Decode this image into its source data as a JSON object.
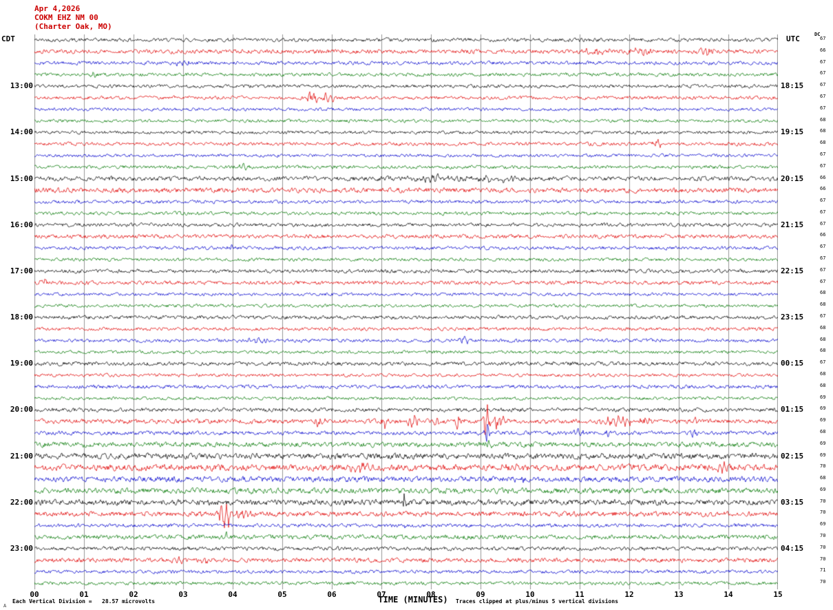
{
  "header": {
    "date": "Apr 4,2026",
    "station": "COKM EHZ NM 00",
    "location": "(Charter Oak, MO)"
  },
  "axes": {
    "left_tz": "CDT",
    "right_tz": "UTC"
  },
  "footer": {
    "watermark": "A"
  },
  "chart_data": {
    "type": "line",
    "subtype": "helicorder-seismogram",
    "title": "COKM EHZ NM 00 (Charter Oak, MO) Apr 4,2026",
    "xlabel": "TIME (MINUTES)",
    "x_range": [
      0,
      15
    ],
    "x_ticks": [
      "00",
      "01",
      "02",
      "03",
      "04",
      "05",
      "06",
      "07",
      "08",
      "09",
      "10",
      "11",
      "12",
      "13",
      "14",
      "15"
    ],
    "rows": 48,
    "rows_per_hour": 4,
    "minutes_per_row": 15,
    "label_row_start": 4,
    "label_row_step": 4,
    "grid": true,
    "grid_color": "#7a7a7a",
    "colors": [
      "#000000",
      "#e00000",
      "#0000cc",
      "#007700"
    ],
    "left_time_labels": [
      "13:00",
      "14:00",
      "15:00",
      "16:00",
      "17:00",
      "18:00",
      "19:00",
      "20:00",
      "21:00",
      "22:00",
      "23:00"
    ],
    "right_time_labels": [
      "18:15",
      "19:15",
      "20:15",
      "21:15",
      "22:15",
      "23:15",
      "00:15",
      "01:15",
      "02:15",
      "03:15",
      "04:15"
    ],
    "dc_label": "DC",
    "dc_values": [
      67,
      66,
      67,
      67,
      67,
      67,
      67,
      68,
      68,
      68,
      67,
      67,
      66,
      66,
      67,
      67,
      67,
      66,
      67,
      67,
      67,
      67,
      68,
      68,
      67,
      68,
      68,
      68,
      67,
      68,
      68,
      69,
      69,
      69,
      68,
      69,
      69,
      70,
      68,
      69,
      70,
      70,
      69,
      70,
      70,
      70,
      71,
      70
    ],
    "scale_note": "Each Vertical Division =   28.57 microvolts",
    "clip_note": "Traces clipped at plus/minus 5 vertical divisions",
    "traces": [
      {
        "c": 0,
        "n": 1.4,
        "ev": []
      },
      {
        "c": 1,
        "n": 1.6,
        "ev": [
          [
            11.3,
            3,
            30
          ],
          [
            12.3,
            3,
            25
          ],
          [
            13.6,
            2.5,
            20
          ]
        ]
      },
      {
        "c": 2,
        "n": 1.4,
        "ev": [
          [
            3.0,
            2.5,
            12
          ]
        ]
      },
      {
        "c": 3,
        "n": 1.3,
        "ev": [
          [
            1.15,
            2.5,
            8
          ]
        ]
      },
      {
        "c": 0,
        "n": 1.3,
        "ev": []
      },
      {
        "c": 1,
        "n": 1.3,
        "ev": [
          [
            5.62,
            8,
            8
          ],
          [
            5.95,
            3.5,
            10
          ]
        ]
      },
      {
        "c": 2,
        "n": 1.2,
        "ev": []
      },
      {
        "c": 3,
        "n": 1.2,
        "ev": []
      },
      {
        "c": 0,
        "n": 1.2,
        "ev": []
      },
      {
        "c": 1,
        "n": 1.3,
        "ev": [
          [
            12.55,
            3.5,
            8
          ]
        ]
      },
      {
        "c": 2,
        "n": 1.2,
        "ev": []
      },
      {
        "c": 3,
        "n": 1.3,
        "ev": [
          [
            4.2,
            2,
            10
          ]
        ]
      },
      {
        "c": 0,
        "n": 1.7,
        "ev": [
          [
            8.3,
            2.5,
            50
          ],
          [
            9.3,
            2.5,
            30
          ]
        ]
      },
      {
        "c": 1,
        "n": 1.9,
        "ev": []
      },
      {
        "c": 2,
        "n": 1.3,
        "ev": []
      },
      {
        "c": 3,
        "n": 1.3,
        "ev": []
      },
      {
        "c": 0,
        "n": 1.4,
        "ev": []
      },
      {
        "c": 1,
        "n": 1.5,
        "ev": []
      },
      {
        "c": 2,
        "n": 1.3,
        "ev": [
          [
            3.95,
            3,
            6
          ]
        ]
      },
      {
        "c": 3,
        "n": 1.2,
        "ev": []
      },
      {
        "c": 0,
        "n": 1.4,
        "ev": []
      },
      {
        "c": 1,
        "n": 1.4,
        "ev": [
          [
            0.2,
            3.5,
            8
          ]
        ]
      },
      {
        "c": 2,
        "n": 1.2,
        "ev": []
      },
      {
        "c": 3,
        "n": 1.2,
        "ev": []
      },
      {
        "c": 0,
        "n": 1.4,
        "ev": []
      },
      {
        "c": 1,
        "n": 1.3,
        "ev": []
      },
      {
        "c": 2,
        "n": 1.3,
        "ev": [
          [
            4.5,
            2,
            20
          ],
          [
            8.65,
            3.5,
            8
          ]
        ]
      },
      {
        "c": 3,
        "n": 1.2,
        "ev": []
      },
      {
        "c": 0,
        "n": 1.5,
        "ev": []
      },
      {
        "c": 1,
        "n": 1.2,
        "ev": []
      },
      {
        "c": 2,
        "n": 1.4,
        "ev": []
      },
      {
        "c": 3,
        "n": 1.2,
        "ev": []
      },
      {
        "c": 0,
        "n": 1.5,
        "ev": []
      },
      {
        "c": 1,
        "n": 1.7,
        "ev": [
          [
            5.75,
            4,
            8
          ],
          [
            7.1,
            6,
            7
          ],
          [
            7.65,
            6,
            8
          ],
          [
            8.1,
            4,
            8
          ],
          [
            8.55,
            6,
            7
          ],
          [
            9.12,
            15,
            5
          ],
          [
            9.35,
            6,
            10
          ],
          [
            11.75,
            6,
            20
          ],
          [
            12.4,
            5,
            12
          ],
          [
            13.3,
            3,
            8
          ]
        ]
      },
      {
        "c": 2,
        "n": 1.5,
        "ev": [
          [
            9.13,
            11,
            3
          ],
          [
            10.95,
            3.5,
            10
          ],
          [
            11.5,
            3,
            10
          ],
          [
            13.3,
            5,
            4
          ]
        ]
      },
      {
        "c": 3,
        "n": 1.9,
        "ev": [
          [
            9.15,
            3.5,
            5
          ]
        ]
      },
      {
        "c": 0,
        "n": 2.2,
        "ev": []
      },
      {
        "c": 1,
        "n": 2.4,
        "ev": [
          [
            6.6,
            3,
            25
          ],
          [
            9.6,
            3,
            18
          ],
          [
            13.9,
            3.5,
            12
          ]
        ]
      },
      {
        "c": 2,
        "n": 2.1,
        "ev": [
          [
            9.8,
            2.5,
            15
          ]
        ]
      },
      {
        "c": 3,
        "n": 2.1,
        "ev": []
      },
      {
        "c": 0,
        "n": 2.2,
        "ev": [
          [
            7.45,
            9,
            4
          ]
        ]
      },
      {
        "c": 1,
        "n": 1.9,
        "ev": [
          [
            3.85,
            13,
            8
          ],
          [
            4.15,
            5,
            15
          ]
        ]
      },
      {
        "c": 2,
        "n": 1.4,
        "ev": [
          [
            7.5,
            2.5,
            5
          ]
        ]
      },
      {
        "c": 3,
        "n": 1.7,
        "ev": [
          [
            3.85,
            8,
            3
          ]
        ]
      },
      {
        "c": 0,
        "n": 1.5,
        "ev": []
      },
      {
        "c": 1,
        "n": 1.7,
        "ev": [
          [
            2.9,
            2.5,
            12
          ],
          [
            3.5,
            2.5,
            15
          ]
        ]
      },
      {
        "c": 2,
        "n": 1.3,
        "ev": []
      },
      {
        "c": 3,
        "n": 1.3,
        "ev": []
      }
    ]
  }
}
